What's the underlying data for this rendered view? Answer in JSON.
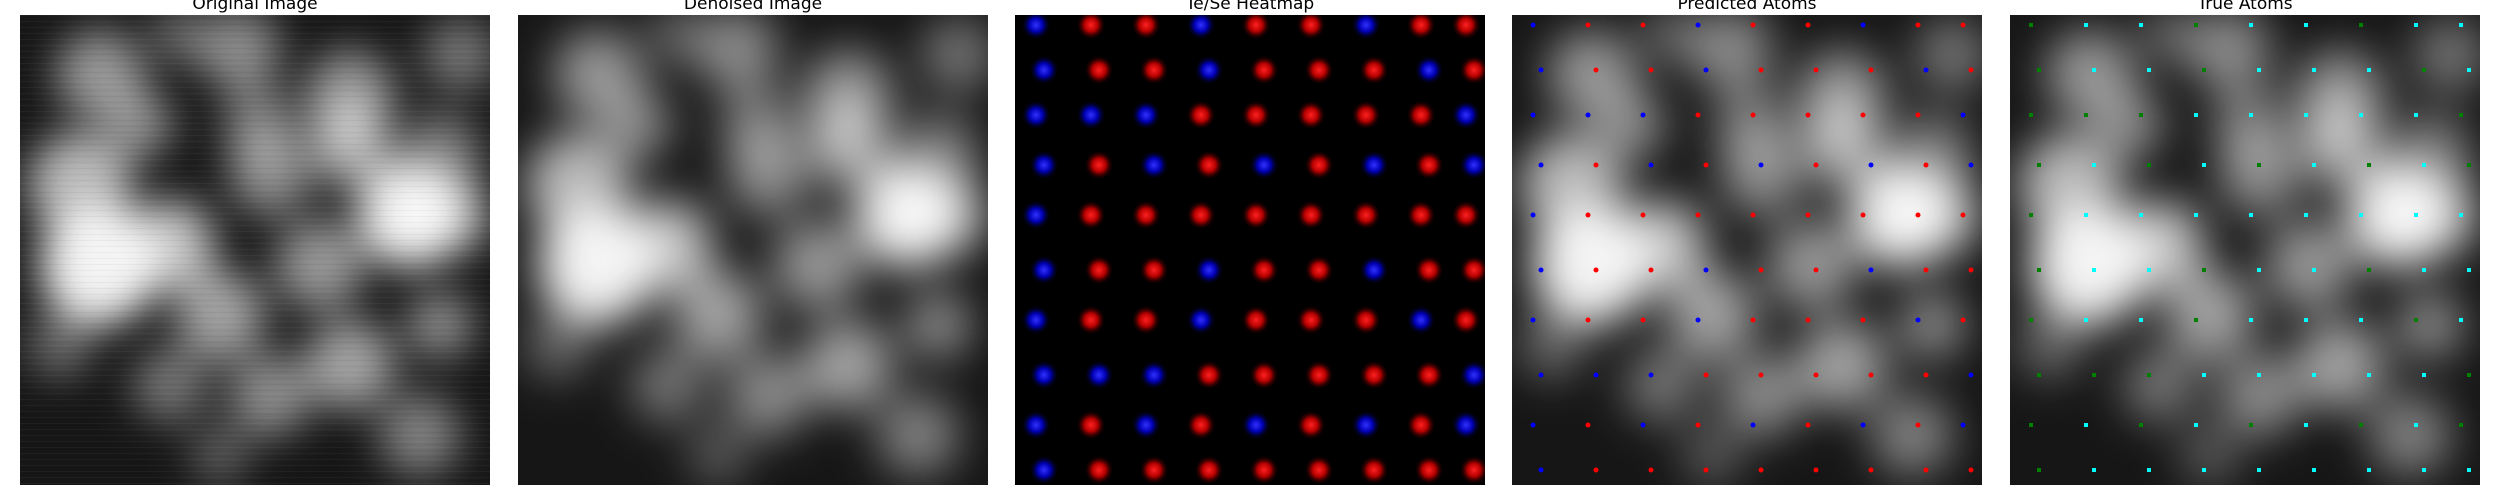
{
  "figure": {
    "panels": [
      {
        "title": "Original Image",
        "kind": "grayscale-noisy"
      },
      {
        "title": "Denoised Image",
        "kind": "grayscale-smooth"
      },
      {
        "title": "Te/Se Heatmap",
        "kind": "heatmap"
      },
      {
        "title": "Predicted Atoms",
        "kind": "grayscale-overlay",
        "point_colors": [
          "#ff0000",
          "#0000ff"
        ]
      },
      {
        "title": "True Atoms",
        "kind": "grayscale-overlay",
        "point_colors": [
          "#00ffff",
          "#008000"
        ]
      }
    ]
  }
}
